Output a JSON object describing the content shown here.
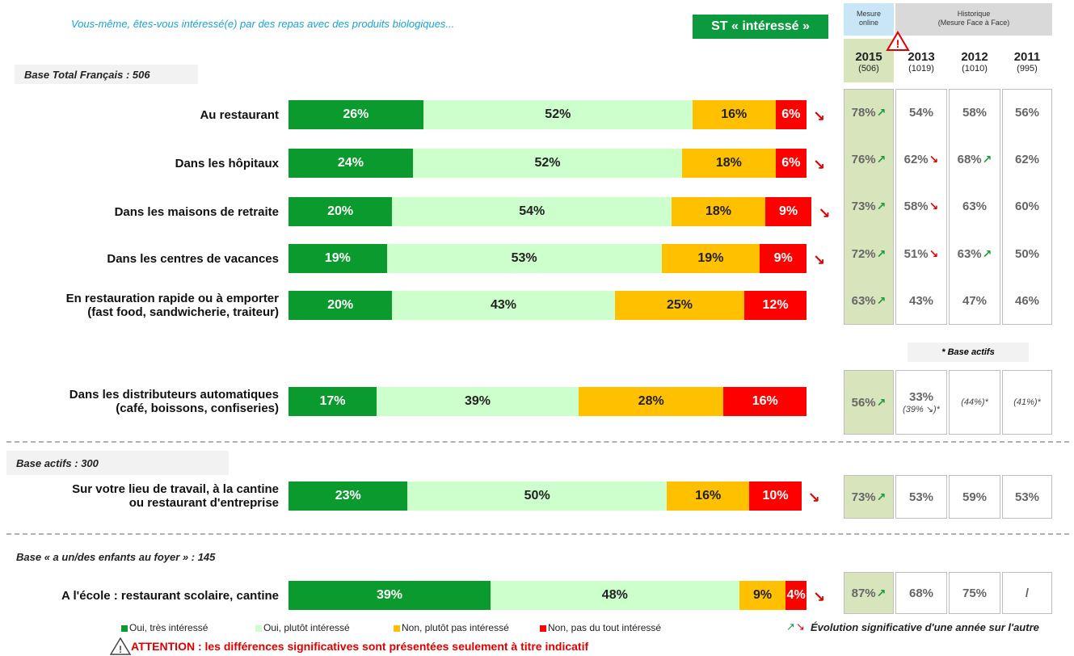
{
  "title": "Vous-même, êtes-vous intéressé(e) par des repas avec des produits biologiques...",
  "badge": "ST « intéressé »",
  "bases": [
    "Base Total Français : 506",
    "Base actifs : 300",
    "Base « a un/des enfants au foyer » : 145"
  ],
  "chart_data": {
    "type": "bar",
    "orientation": "horizontal",
    "stacked": true,
    "categories": [
      "Au restaurant",
      "Dans les hôpitaux",
      "Dans les maisons de retraite",
      "Dans les centres de vacances",
      "En restauration rapide ou à emporter\n(fast food, sandwicherie, traiteur)",
      "Dans les distributeurs automatiques\n(café, boissons, confiseries)",
      "Sur votre lieu de travail, à la cantine\nou restaurant d'entreprise",
      "A l'école : restaurant scolaire, cantine"
    ],
    "xlim": [
      0,
      100
    ],
    "series": [
      {
        "name": "Oui, très intéressé",
        "color": "#0b9a2e",
        "label_color": "#ffffff",
        "values": [
          26,
          24,
          20,
          19,
          20,
          17,
          23,
          39
        ],
        "value_labels": [
          "26%",
          "24%",
          "20%",
          "19%",
          "20%",
          "17%",
          "23%",
          "39%"
        ]
      },
      {
        "name": "Oui, plutôt intéressé",
        "color": "#ccffcc",
        "label_color": "#222222",
        "values": [
          52,
          52,
          54,
          53,
          43,
          39,
          50,
          48
        ],
        "value_labels": [
          "52%",
          "52%",
          "54%",
          "53%",
          "43%",
          "39%",
          "50%",
          "48%"
        ]
      },
      {
        "name": "Non, plutôt pas intéressé",
        "color": "#ffc000",
        "label_color": "#222222",
        "values": [
          16,
          18,
          18,
          19,
          25,
          28,
          16,
          9
        ],
        "value_labels": [
          "16%",
          "18%",
          "18%",
          "19%",
          "25%",
          "28%",
          "16%",
          "9%"
        ]
      },
      {
        "name": "Non, pas du tout intéressé",
        "color": "#ff0000",
        "label_color": "#ffffff",
        "values": [
          6,
          6,
          9,
          9,
          12,
          16,
          10,
          4
        ],
        "value_labels": [
          "6%",
          "6%",
          "9%",
          "9%",
          "12%",
          "16%",
          "10%",
          "4%"
        ]
      }
    ],
    "trend_marks": [
      "↘",
      "↘",
      "↘",
      "↘",
      null,
      null,
      "↘",
      "↘"
    ],
    "trend_color": "#e00000"
  },
  "table": {
    "group_headers": [
      "Mesure\nonline",
      "Historique\n(Mesure Face à Face)"
    ],
    "columns": [
      {
        "year": "2015",
        "base": "(506)"
      },
      {
        "year": "2013",
        "base": "(1019)"
      },
      {
        "year": "2012",
        "base": "(1010)"
      },
      {
        "year": "2011",
        "base": "(995)"
      }
    ],
    "rows": [
      [
        {
          "text": "78%",
          "trend": "↗",
          "trend_color": "#1a9a3a"
        },
        {
          "text": "54%"
        },
        {
          "text": "58%"
        },
        {
          "text": "56%"
        }
      ],
      [
        {
          "text": "76%",
          "trend": "↗",
          "trend_color": "#1a9a3a"
        },
        {
          "text": "62%",
          "trend": "↘",
          "trend_color": "#e00000"
        },
        {
          "text": "68%",
          "trend": "↗",
          "trend_color": "#1a9a3a"
        },
        {
          "text": "62%"
        }
      ],
      [
        {
          "text": "73%",
          "trend": "↗",
          "trend_color": "#1a9a3a"
        },
        {
          "text": "58%",
          "trend": "↘",
          "trend_color": "#e00000"
        },
        {
          "text": "63%"
        },
        {
          "text": "60%"
        }
      ],
      [
        {
          "text": "72%",
          "trend": "↗",
          "trend_color": "#1a9a3a"
        },
        {
          "text": "51%",
          "trend": "↘",
          "trend_color": "#e00000"
        },
        {
          "text": "63%",
          "trend": "↗",
          "trend_color": "#1a9a3a"
        },
        {
          "text": "50%"
        }
      ],
      [
        {
          "text": "63%",
          "trend": "↗",
          "trend_color": "#1a9a3a"
        },
        {
          "text": "43%"
        },
        {
          "text": "47%"
        },
        {
          "text": "46%"
        }
      ],
      [
        {
          "text": "56%",
          "trend": "↗",
          "trend_color": "#1a9a3a"
        },
        {
          "text": "33%",
          "sub": "(39% ↘)*"
        },
        {
          "sub": "(44%)*"
        },
        {
          "sub": "(41%)*"
        }
      ],
      [
        {
          "text": "73%",
          "trend": "↗",
          "trend_color": "#1a9a3a"
        },
        {
          "text": "53%"
        },
        {
          "text": "59%"
        },
        {
          "text": "53%"
        }
      ],
      [
        {
          "text": "87%",
          "trend": "↗",
          "trend_color": "#1a9a3a"
        },
        {
          "text": "68%"
        },
        {
          "text": "75%"
        },
        {
          "text": "/"
        }
      ]
    ],
    "note": "* Base actifs"
  },
  "footer": {
    "trend_symbols": [
      {
        "symbol": "↗",
        "color": "#1a9a3a"
      },
      {
        "symbol": "↘",
        "color": "#e00000"
      }
    ],
    "trend_legend": "Évolution significative d'une année sur l'autre",
    "warning": "ATTENTION : les différences significatives sont présentées seulement à titre indicatif"
  }
}
